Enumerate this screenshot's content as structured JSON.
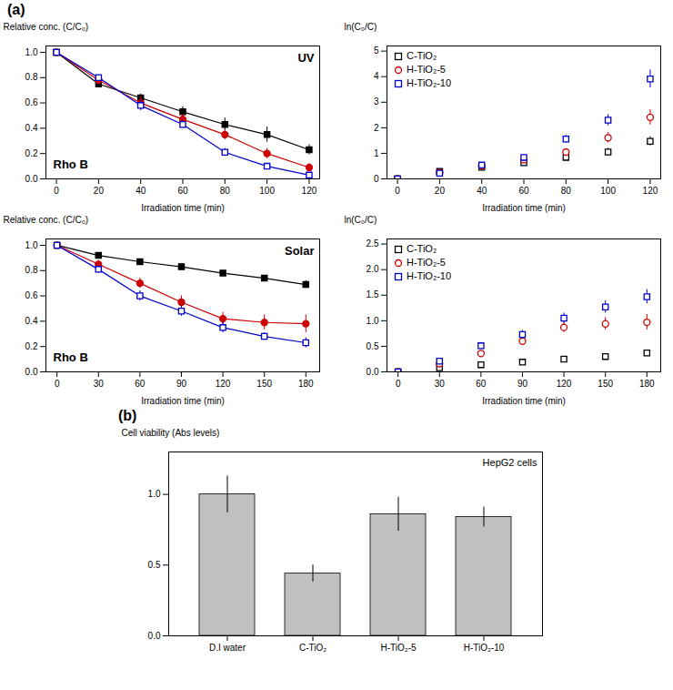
{
  "chart_data": [
    {
      "type": "line",
      "title": "(a)",
      "x_label": "Irradiation time (min)",
      "y_label": "Relative conc. (C/C₀)",
      "annotations": [
        "UV",
        "Rho B"
      ],
      "x": [
        0,
        20,
        40,
        60,
        80,
        100,
        120
      ],
      "xlim": [
        -5,
        125
      ],
      "xticks": [
        0,
        20,
        40,
        60,
        80,
        100,
        120
      ],
      "ylim": [
        0,
        1.05
      ],
      "yticks": [
        {
          "value": 0,
          "label": "0.0"
        },
        0.2,
        0.4,
        0.6,
        0.8,
        {
          "value": 1,
          "label": "1.0"
        }
      ],
      "series": [
        {
          "color": "#000000",
          "marker": "filled square",
          "line_style": "solid",
          "values": [
            1.0,
            0.75,
            0.64,
            0.53,
            0.43,
            0.35,
            0.23
          ],
          "errors": [
            0.0,
            0.03,
            0.03,
            0.04,
            0.05,
            0.06,
            0.04
          ]
        },
        {
          "color": "#cc0000",
          "marker": "filled circle",
          "line_style": "solid",
          "values": [
            1.0,
            0.78,
            0.6,
            0.47,
            0.35,
            0.2,
            0.09
          ],
          "errors": [
            0.0,
            0.03,
            0.05,
            0.04,
            0.04,
            0.04,
            0.03
          ]
        },
        {
          "color": "#0000cc",
          "marker": "open square",
          "line_style": "solid",
          "values": [
            1.0,
            0.8,
            0.58,
            0.43,
            0.21,
            0.1,
            0.03
          ],
          "errors": [
            0.0,
            0.02,
            0.04,
            0.03,
            0.03,
            0.02,
            0.02
          ]
        }
      ]
    },
    {
      "type": "scatter",
      "x_label": "Irradiation time (min)",
      "y_label": "ln(C₀/C)",
      "legend": "upper left",
      "x": [
        0,
        20,
        40,
        60,
        80,
        100,
        120
      ],
      "xlim": [
        -5,
        125
      ],
      "xticks": [
        0,
        20,
        40,
        60,
        80,
        100,
        120
      ],
      "ylim": [
        0,
        5.2
      ],
      "yticks": [
        0,
        1,
        2,
        3,
        4,
        5
      ],
      "series": [
        {
          "name": "C-TiO₂",
          "color": "#000000",
          "marker": "open square",
          "line_style": "none",
          "values": [
            0.0,
            0.29,
            0.45,
            0.63,
            0.84,
            1.05,
            1.47
          ],
          "errors": [
            0.0,
            0.05,
            0.06,
            0.08,
            0.1,
            0.15,
            0.18
          ]
        },
        {
          "name": "H-TiO₂-5",
          "color": "#cc0000",
          "marker": "open circle",
          "line_style": "none",
          "values": [
            0.0,
            0.25,
            0.51,
            0.75,
            1.05,
            1.61,
            2.41
          ],
          "errors": [
            0.0,
            0.04,
            0.07,
            0.1,
            0.12,
            0.2,
            0.3
          ]
        },
        {
          "name": "H-TiO₂-10",
          "color": "#0000cc",
          "marker": "open square",
          "line_style": "none",
          "values": [
            0.0,
            0.22,
            0.54,
            0.84,
            1.56,
            2.3,
            3.91
          ],
          "errors": [
            0.0,
            0.03,
            0.07,
            0.09,
            0.15,
            0.22,
            0.35
          ]
        }
      ]
    },
    {
      "type": "line",
      "x_label": "Irradiation time (min)",
      "y_label": "Relative conc. (C/C₀)",
      "annotations": [
        "Solar",
        "Rho B"
      ],
      "x": [
        0,
        30,
        60,
        90,
        120,
        150,
        180
      ],
      "xlim": [
        -8,
        190
      ],
      "xticks": [
        0,
        30,
        60,
        90,
        120,
        150,
        180
      ],
      "ylim": [
        0,
        1.05
      ],
      "yticks": [
        {
          "value": 0,
          "label": "0.0"
        },
        0.2,
        0.4,
        0.6,
        0.8,
        {
          "value": 1,
          "label": "1.0"
        }
      ],
      "series": [
        {
          "color": "#000000",
          "marker": "filled square",
          "line_style": "solid",
          "values": [
            1.0,
            0.92,
            0.87,
            0.83,
            0.78,
            0.74,
            0.69
          ],
          "errors": [
            0.0,
            0.02,
            0.02,
            0.02,
            0.02,
            0.02,
            0.03
          ]
        },
        {
          "color": "#cc0000",
          "marker": "filled circle",
          "line_style": "solid",
          "values": [
            1.0,
            0.85,
            0.7,
            0.55,
            0.42,
            0.39,
            0.38
          ],
          "errors": [
            0.0,
            0.03,
            0.04,
            0.05,
            0.05,
            0.06,
            0.07
          ]
        },
        {
          "color": "#0000cc",
          "marker": "open square",
          "line_style": "solid",
          "values": [
            1.0,
            0.81,
            0.6,
            0.48,
            0.35,
            0.28,
            0.23
          ],
          "errors": [
            0.0,
            0.03,
            0.04,
            0.04,
            0.04,
            0.03,
            0.04
          ]
        }
      ]
    },
    {
      "type": "scatter",
      "x_label": "Irradiation time (min)",
      "y_label": "ln(C₀/C)",
      "legend": "upper left",
      "x": [
        0,
        30,
        60,
        90,
        120,
        150,
        180
      ],
      "xlim": [
        -8,
        190
      ],
      "xticks": [
        0,
        30,
        60,
        90,
        120,
        150,
        180
      ],
      "ylim": [
        0,
        2.6
      ],
      "yticks": [
        {
          "value": 0,
          "label": "0.0"
        },
        0.5,
        {
          "value": 1,
          "label": "1.0"
        },
        1.5,
        {
          "value": 2,
          "label": "2.0"
        },
        2.5
      ],
      "series": [
        {
          "name": "C-TiO₂",
          "color": "#000000",
          "marker": "open square",
          "line_style": "none",
          "values": [
            0.0,
            0.08,
            0.14,
            0.19,
            0.25,
            0.3,
            0.37
          ],
          "errors": [
            0.0,
            0.02,
            0.03,
            0.03,
            0.03,
            0.03,
            0.04
          ]
        },
        {
          "name": "H-TiO₂-5",
          "color": "#cc0000",
          "marker": "open circle",
          "line_style": "none",
          "values": [
            0.0,
            0.16,
            0.36,
            0.6,
            0.87,
            0.94,
            0.97
          ],
          "errors": [
            0.0,
            0.04,
            0.06,
            0.08,
            0.1,
            0.12,
            0.15
          ]
        },
        {
          "name": "H-TiO₂-10",
          "color": "#0000cc",
          "marker": "open square",
          "line_style": "none",
          "values": [
            0.0,
            0.21,
            0.51,
            0.73,
            1.05,
            1.27,
            1.47
          ],
          "errors": [
            0.0,
            0.04,
            0.06,
            0.08,
            0.1,
            0.12,
            0.14
          ]
        }
      ]
    },
    {
      "type": "bar",
      "title": "(b)",
      "y_label": "Cell viability (Abs levels)",
      "annotations": [
        "HepG2 cells"
      ],
      "categories": [
        "D.I water",
        "C-TiO₂",
        "H-TiO₂-5",
        "H-TiO₂-10"
      ],
      "values": [
        1.0,
        0.44,
        0.86,
        0.84
      ],
      "errors": [
        0.13,
        0.06,
        0.12,
        0.07
      ],
      "color": "#c0c0c0",
      "ylim": [
        0,
        1.3
      ],
      "yticks": [
        {
          "value": 0,
          "label": "0.0"
        },
        0.5,
        {
          "value": 1,
          "label": "1.0"
        }
      ]
    }
  ]
}
